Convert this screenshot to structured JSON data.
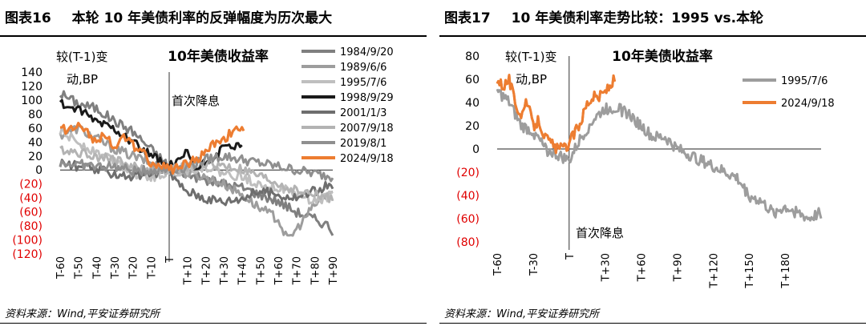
{
  "panels": [
    {
      "fig_no": "图表16",
      "fig_title": "本轮 10 年美债利率的反弹幅度为历次最大",
      "source": "资料来源：Wind,平安证券研究所"
    },
    {
      "fig_no": "图表17",
      "fig_title": "10 年美债利率走势比较：1995 vs.本轮",
      "source": "资料来源：Wind,平安证券研究所"
    }
  ],
  "chart_data": [
    {
      "type": "line",
      "title": "10年美债收益率",
      "ylabel": "较(T-1)变动,BP",
      "annotation": "首次降息",
      "ylim": [
        -120,
        140
      ],
      "yticks": [
        140,
        120,
        100,
        80,
        60,
        40,
        20,
        0,
        -20,
        -40,
        -60,
        -80,
        -100,
        -120
      ],
      "ytick_labels": [
        "140",
        "120",
        "100",
        "80",
        "60",
        "40",
        "20",
        "0",
        "(20)",
        "(40)",
        "(60)",
        "(80)",
        "(100)",
        "(120)"
      ],
      "xlim": [
        -60,
        90
      ],
      "xticks": [
        "T-60",
        "T-50",
        "T-40",
        "T-30",
        "T-20",
        "T-10",
        "T",
        "T+10",
        "T+20",
        "T+30",
        "T+40",
        "T+50",
        "T+60",
        "T+70",
        "T+80",
        "T+90"
      ],
      "grid": false,
      "legend_position": "top-right",
      "series": [
        {
          "name": "1984/9/20",
          "color": "#7f7f7f",
          "end": 90,
          "points": [
            [
              -60,
              110
            ],
            [
              -50,
              95
            ],
            [
              -40,
              88
            ],
            [
              -30,
              70
            ],
            [
              -20,
              55
            ],
            [
              -10,
              30
            ],
            [
              0,
              5
            ],
            [
              10,
              -5
            ],
            [
              20,
              -15
            ],
            [
              30,
              -20
            ],
            [
              40,
              -25
            ],
            [
              50,
              -35
            ],
            [
              60,
              -45
            ],
            [
              70,
              -60
            ],
            [
              80,
              -70
            ],
            [
              88,
              -80
            ],
            [
              90,
              -90
            ]
          ]
        },
        {
          "name": "1989/6/6",
          "color": "#9d9d9d",
          "end": 90,
          "points": [
            [
              -60,
              50
            ],
            [
              -50,
              60
            ],
            [
              -40,
              45
            ],
            [
              -30,
              30
            ],
            [
              -20,
              20
            ],
            [
              -10,
              10
            ],
            [
              0,
              0
            ],
            [
              10,
              -5
            ],
            [
              20,
              -10
            ],
            [
              30,
              -20
            ],
            [
              40,
              -35
            ],
            [
              50,
              -55
            ],
            [
              60,
              -70
            ],
            [
              65,
              -100
            ],
            [
              70,
              -85
            ],
            [
              80,
              -50
            ],
            [
              90,
              -30
            ]
          ]
        },
        {
          "name": "1995/7/6",
          "color": "#bfbfbf",
          "end": 90,
          "points": [
            [
              -60,
              55
            ],
            [
              -50,
              40
            ],
            [
              -40,
              25
            ],
            [
              -30,
              15
            ],
            [
              -20,
              -5
            ],
            [
              -10,
              -10
            ],
            [
              0,
              -5
            ],
            [
              10,
              0
            ],
            [
              20,
              5
            ],
            [
              30,
              -5
            ],
            [
              40,
              -10
            ],
            [
              50,
              -20
            ],
            [
              60,
              -25
            ],
            [
              70,
              -35
            ],
            [
              80,
              -45
            ],
            [
              90,
              -35
            ]
          ]
        },
        {
          "name": "1998/9/29",
          "color": "#1a1a1a",
          "end": 40,
          "points": [
            [
              -60,
              95
            ],
            [
              -50,
              85
            ],
            [
              -40,
              70
            ],
            [
              -30,
              60
            ],
            [
              -20,
              40
            ],
            [
              -10,
              20
            ],
            [
              0,
              5
            ],
            [
              5,
              10
            ],
            [
              10,
              25
            ],
            [
              15,
              0
            ],
            [
              20,
              10
            ],
            [
              25,
              20
            ],
            [
              30,
              30
            ],
            [
              35,
              35
            ],
            [
              40,
              30
            ]
          ]
        },
        {
          "name": "2001/1/3",
          "color": "#6e6e6e",
          "end": 90,
          "points": [
            [
              -60,
              10
            ],
            [
              -50,
              5
            ],
            [
              -40,
              0
            ],
            [
              -30,
              -5
            ],
            [
              -20,
              -10
            ],
            [
              -10,
              -5
            ],
            [
              0,
              0
            ],
            [
              5,
              -20
            ],
            [
              10,
              -30
            ],
            [
              20,
              -40
            ],
            [
              30,
              -45
            ],
            [
              40,
              -40
            ],
            [
              50,
              -30
            ],
            [
              60,
              -35
            ],
            [
              70,
              -40
            ],
            [
              80,
              -30
            ],
            [
              90,
              -20
            ]
          ]
        },
        {
          "name": "2007/9/18",
          "color": "#b3b3b3",
          "end": 90,
          "points": [
            [
              -60,
              30
            ],
            [
              -50,
              25
            ],
            [
              -40,
              20
            ],
            [
              -30,
              15
            ],
            [
              -20,
              5
            ],
            [
              -10,
              0
            ],
            [
              0,
              0
            ],
            [
              10,
              5
            ],
            [
              20,
              10
            ],
            [
              30,
              5
            ],
            [
              40,
              0
            ],
            [
              50,
              -10
            ],
            [
              60,
              -20
            ],
            [
              70,
              -30
            ],
            [
              80,
              -35
            ],
            [
              90,
              -40
            ]
          ]
        },
        {
          "name": "2019/8/1",
          "color": "#8f8f8f",
          "end": 90,
          "points": [
            [
              -60,
              10
            ],
            [
              -50,
              8
            ],
            [
              -40,
              5
            ],
            [
              -30,
              5
            ],
            [
              -20,
              -2
            ],
            [
              -10,
              0
            ],
            [
              0,
              0
            ],
            [
              10,
              5
            ],
            [
              20,
              15
            ],
            [
              30,
              20
            ],
            [
              40,
              15
            ],
            [
              50,
              10
            ],
            [
              60,
              5
            ],
            [
              70,
              0
            ],
            [
              80,
              -5
            ],
            [
              90,
              -10
            ]
          ]
        },
        {
          "name": "2024/9/18",
          "color": "#ed7d31",
          "end": 41,
          "points": [
            [
              -60,
              60
            ],
            [
              -55,
              55
            ],
            [
              -50,
              70
            ],
            [
              -45,
              55
            ],
            [
              -40,
              40
            ],
            [
              -35,
              50
            ],
            [
              -30,
              35
            ],
            [
              -25,
              45
            ],
            [
              -20,
              35
            ],
            [
              -15,
              30
            ],
            [
              -10,
              10
            ],
            [
              -5,
              5
            ],
            [
              0,
              0
            ],
            [
              5,
              5
            ],
            [
              10,
              10
            ],
            [
              15,
              15
            ],
            [
              20,
              25
            ],
            [
              25,
              40
            ],
            [
              30,
              45
            ],
            [
              35,
              55
            ],
            [
              40,
              60
            ],
            [
              41,
              60
            ]
          ]
        }
      ]
    },
    {
      "type": "line",
      "title": "10年美债收益率",
      "ylabel": "较(T-1)变动,BP",
      "annotation": "首次降息",
      "ylim": [
        -80,
        80
      ],
      "yticks": [
        80,
        60,
        40,
        20,
        0,
        -20,
        -40,
        -60,
        -80
      ],
      "ytick_labels": [
        "80",
        "60",
        "40",
        "20",
        "0",
        "(20)",
        "(40)",
        "(60)",
        "(80)"
      ],
      "xlim": [
        -60,
        210
      ],
      "xticks": [
        "T-60",
        "T-30",
        "T",
        "T+30",
        "T+60",
        "T+90",
        "T+120",
        "T+150",
        "T+180"
      ],
      "grid": false,
      "legend_position": "top-right",
      "series": [
        {
          "name": "1995/7/6",
          "color": "#9d9d9d",
          "end": 210,
          "points": [
            [
              -60,
              50
            ],
            [
              -50,
              40
            ],
            [
              -40,
              20
            ],
            [
              -30,
              15
            ],
            [
              -20,
              0
            ],
            [
              -10,
              -5
            ],
            [
              0,
              -10
            ],
            [
              10,
              10
            ],
            [
              20,
              25
            ],
            [
              30,
              35
            ],
            [
              40,
              35
            ],
            [
              50,
              30
            ],
            [
              60,
              20
            ],
            [
              70,
              10
            ],
            [
              80,
              10
            ],
            [
              90,
              0
            ],
            [
              100,
              -5
            ],
            [
              110,
              -10
            ],
            [
              120,
              -15
            ],
            [
              130,
              -20
            ],
            [
              140,
              -25
            ],
            [
              150,
              -40
            ],
            [
              160,
              -45
            ],
            [
              170,
              -55
            ],
            [
              180,
              -50
            ],
            [
              190,
              -55
            ],
            [
              200,
              -60
            ],
            [
              210,
              -55
            ]
          ]
        },
        {
          "name": "2024/9/18",
          "color": "#ed7d31",
          "end": 38,
          "points": [
            [
              -60,
              60
            ],
            [
              -55,
              55
            ],
            [
              -50,
              60
            ],
            [
              -45,
              40
            ],
            [
              -40,
              30
            ],
            [
              -35,
              40
            ],
            [
              -30,
              20
            ],
            [
              -25,
              25
            ],
            [
              -20,
              10
            ],
            [
              -15,
              5
            ],
            [
              -10,
              0
            ],
            [
              -5,
              0
            ],
            [
              0,
              5
            ],
            [
              5,
              15
            ],
            [
              10,
              25
            ],
            [
              15,
              40
            ],
            [
              20,
              45
            ],
            [
              25,
              45
            ],
            [
              30,
              50
            ],
            [
              35,
              55
            ],
            [
              38,
              60
            ]
          ]
        }
      ]
    }
  ]
}
